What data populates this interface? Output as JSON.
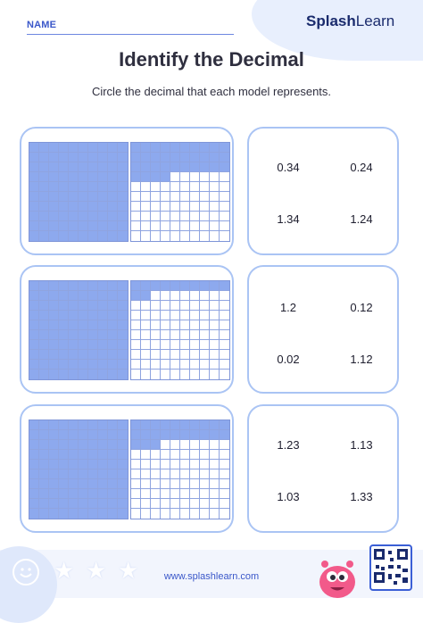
{
  "header": {
    "name_label": "NAME",
    "brand_bold": "Splash",
    "brand_light": "Learn",
    "title": "Identify the Decimal",
    "instruction": "Circle the decimal that each model represents."
  },
  "problems": [
    {
      "full_grids": 1,
      "partial_shaded_cells": 34,
      "choices": [
        "0.34",
        "0.24",
        "1.34",
        "1.24"
      ]
    },
    {
      "full_grids": 1,
      "partial_shaded_cells": 12,
      "choices": [
        "1.2",
        "0.12",
        "0.02",
        "1.12"
      ]
    },
    {
      "full_grids": 1,
      "partial_shaded_cells": 23,
      "choices": [
        "1.23",
        "1.13",
        "1.03",
        "1.33"
      ]
    }
  ],
  "footer": {
    "url": "www.splashlearn.com"
  },
  "colors": {
    "accent": "#3a57c9",
    "card_border": "#aac4f4",
    "shaded_cell": "#8da9ee"
  },
  "icons": [
    "smiley-icon",
    "star-icon",
    "star-icon",
    "star-icon",
    "monster-mascot-icon",
    "qr-code-icon"
  ]
}
